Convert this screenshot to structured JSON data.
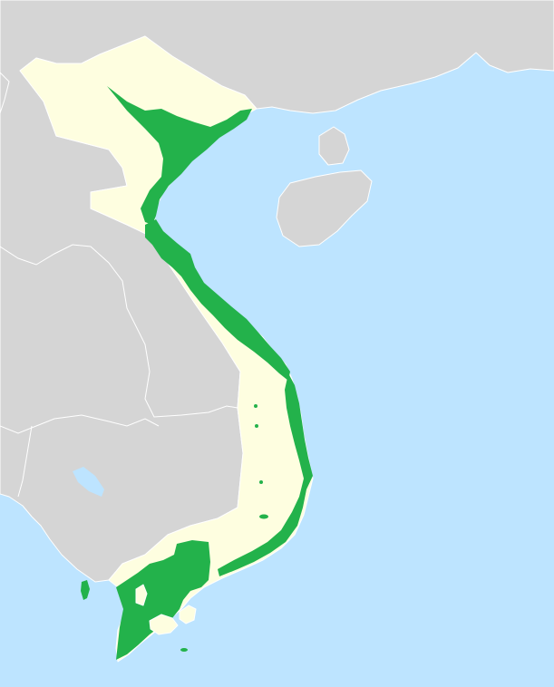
{
  "map": {
    "colors": {
      "sea": "#bde4ff",
      "neighbor_land": "#d5d5d5",
      "country_fill": "#fefee0",
      "highlight_region": "#23b24b",
      "borders": "#ffffff"
    },
    "highlighted_areas": [
      "red-river-delta",
      "north-central-coast",
      "south-central-coast",
      "mekong-delta",
      "small-islands"
    ]
  }
}
